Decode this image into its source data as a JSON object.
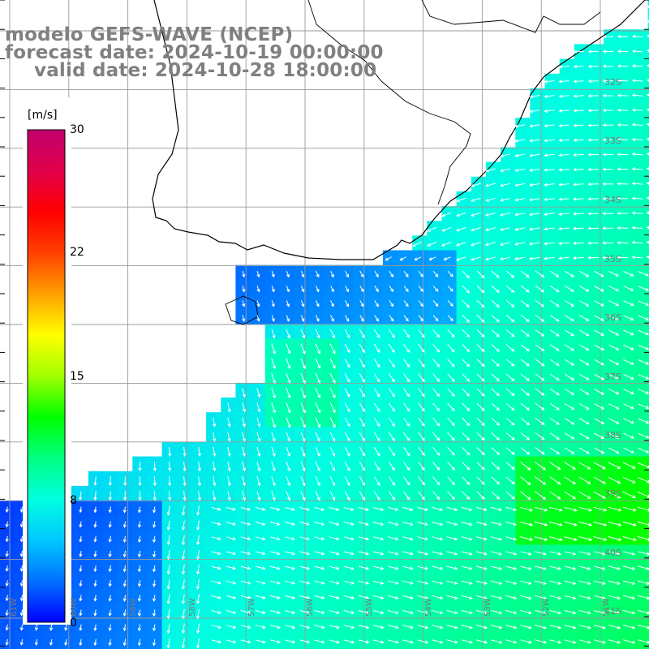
{
  "title": {
    "line1": "modelo GEFS-WAVE (NCEP)",
    "line2": "forecast date: 2024-10-19 00:00:00",
    "line3": "valid date: 2024-10-28 18:00:00"
  },
  "colorbar": {
    "unit": "[m/s]",
    "ticks": [
      "30",
      "22",
      "15",
      "8",
      "0"
    ],
    "colors": [
      "#0000ff",
      "#0070ff",
      "#00c8ff",
      "#00ffe0",
      "#00ff80",
      "#00ff00",
      "#a0ff00",
      "#ffff00",
      "#ffa000",
      "#ff4000",
      "#ff0000",
      "#e0004a",
      "#c0006e"
    ]
  },
  "map": {
    "land_color": "#ffffff",
    "grid_color": "#9a9a9a",
    "coast_color": "#000000",
    "arrow_color": "#ffffff",
    "lat_labels": [
      "32S",
      "33S",
      "34S",
      "35S",
      "36S",
      "37S",
      "38S",
      "39S",
      "40S",
      "41S"
    ],
    "lon_labels": [
      "61W",
      "60W",
      "59W",
      "58W",
      "57W",
      "56W",
      "55W",
      "54W",
      "53W",
      "52W",
      "51W"
    ]
  }
}
